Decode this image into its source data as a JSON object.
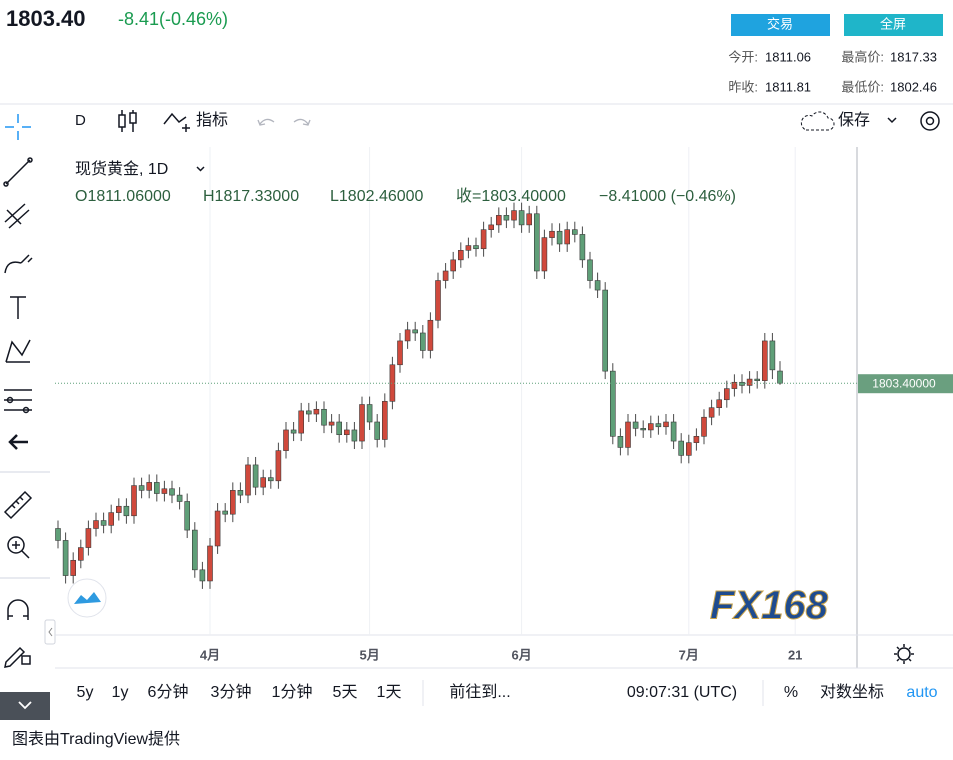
{
  "header": {
    "price": "1803.40",
    "change": "-8.41(-0.46%)",
    "buttons": [
      "交易",
      "全屏"
    ],
    "stats": [
      {
        "label": "今开:",
        "value": "1811.06"
      },
      {
        "label": "最高价:",
        "value": "1817.33"
      },
      {
        "label": "昨收:",
        "value": "1811.81"
      },
      {
        "label": "最低价:",
        "value": "1802.46"
      }
    ]
  },
  "toolbar": {
    "interval": "D",
    "indicators": "指标",
    "save": "保存"
  },
  "legend": {
    "symbol": "现货黄金, 1D",
    "ohlc": [
      "O1811.06000",
      "H1817.33000",
      "L1802.46000",
      "收=1803.40000"
    ],
    "change": "−8.41000 (−0.46%)"
  },
  "watermark": "FX168",
  "bottom_bar": {
    "ranges": [
      "5y",
      "1y",
      "6分钟",
      "3分钟",
      "1分钟",
      "5天",
      "1天"
    ],
    "goto": "前往到...",
    "time": "09:07:31 (UTC)",
    "percent": "%",
    "log": "对数坐标",
    "auto": "auto"
  },
  "footer": "图表由TradingView提供",
  "chart_data": {
    "type": "candlestick",
    "up_color": "#d0493c",
    "down_color": "#5f9f78",
    "ylim": [
      1645,
      1952
    ],
    "last_price": {
      "value": 1803.4,
      "label": "1803.40000"
    },
    "categories": [
      null,
      null,
      null,
      null,
      null,
      null,
      null,
      null,
      null,
      null,
      null,
      null,
      null,
      null,
      null,
      null,
      null,
      null,
      null,
      null,
      "4月",
      null,
      null,
      null,
      null,
      null,
      null,
      null,
      null,
      null,
      null,
      null,
      null,
      null,
      null,
      null,
      null,
      null,
      null,
      null,
      null,
      "5月",
      null,
      null,
      null,
      null,
      null,
      null,
      null,
      null,
      null,
      null,
      null,
      null,
      null,
      null,
      null,
      null,
      null,
      null,
      null,
      "6月",
      null,
      null,
      null,
      null,
      null,
      null,
      null,
      null,
      null,
      null,
      null,
      null,
      null,
      null,
      null,
      null,
      null,
      null,
      null,
      null,
      null,
      "7月",
      null,
      null,
      null,
      null,
      null,
      null,
      null,
      null,
      null,
      null,
      null,
      null,
      null,
      "21"
    ],
    "open": [
      1712,
      1704.5,
      1682.4,
      1692,
      1700,
      1712,
      1717,
      1714,
      1722,
      1726,
      1720,
      1739,
      1736,
      1741,
      1734,
      1737,
      1733,
      1729,
      1711,
      1686,
      1679,
      1701,
      1723,
      1721,
      1736,
      1733,
      1752,
      1738,
      1744,
      1742,
      1761,
      1774,
      1772,
      1786,
      1784,
      1787,
      1777,
      1779,
      1771,
      1774,
      1767,
      1790,
      1779,
      1768,
      1792,
      1815,
      1830,
      1837,
      1835,
      1824,
      1843,
      1868,
      1874,
      1881,
      1887,
      1890,
      1888,
      1900,
      1903,
      1909,
      1906,
      1912,
      1903,
      1910,
      1874,
      1895,
      1899,
      1891,
      1900,
      1897,
      1881,
      1868,
      1862,
      1811,
      1770,
      1763,
      1779,
      1775,
      1774,
      1778,
      1776,
      1779,
      1767,
      1758,
      1766,
      1770,
      1782,
      1788,
      1793,
      1800,
      1804,
      1802,
      1806,
      1805,
      1830,
      1811.06,
      null,
      null
    ],
    "high": [
      1717,
      1709.5,
      1697,
      1705,
      1717,
      1722,
      1722,
      1727,
      1731,
      1731,
      1744,
      1744,
      1746,
      1746,
      1742,
      1742,
      1738,
      1734,
      1716,
      1691,
      1706,
      1728,
      1728,
      1741,
      1741,
      1757,
      1757,
      1749,
      1749,
      1766,
      1779,
      1779,
      1791,
      1791,
      1792,
      1792,
      1784,
      1784,
      1779,
      1779,
      1795,
      1795,
      1784,
      1797,
      1820,
      1835,
      1842,
      1842,
      1840,
      1848,
      1873,
      1879,
      1886,
      1892,
      1895,
      1895,
      1905,
      1908,
      1914,
      1914,
      1917,
      1917,
      1915,
      1915,
      1900,
      1904,
      1904,
      1905,
      1905,
      1902,
      1886,
      1873,
      1867,
      1816,
      1775,
      1784,
      1784,
      1780,
      1783,
      1783,
      1784,
      1784,
      1772,
      1771,
      1775,
      1787,
      1793,
      1798,
      1805,
      1809,
      1809,
      1811,
      1811,
      1835,
      1835,
      1817.33,
      null,
      null
    ],
    "low": [
      1699.5,
      1677.4,
      1677.4,
      1687,
      1695,
      1707,
      1709,
      1709,
      1717,
      1715,
      1715,
      1731,
      1731,
      1729,
      1729,
      1728,
      1724,
      1706,
      1681,
      1674,
      1674,
      1696,
      1716,
      1716,
      1728,
      1728,
      1733,
      1733,
      1737,
      1737,
      1756,
      1767,
      1767,
      1779,
      1779,
      1772,
      1772,
      1766,
      1766,
      1762,
      1762,
      1774,
      1763,
      1763,
      1787,
      1810,
      1825,
      1830,
      1819,
      1819,
      1838,
      1863,
      1869,
      1876,
      1882,
      1883,
      1883,
      1895,
      1898,
      1901,
      1901,
      1898,
      1898,
      1869,
      1869,
      1890,
      1886,
      1886,
      1892,
      1876,
      1863,
      1857,
      1806,
      1765,
      1758,
      1758,
      1770,
      1769,
      1769,
      1771,
      1771,
      1762,
      1753,
      1753,
      1761,
      1765,
      1777,
      1783,
      1788,
      1795,
      1797,
      1797,
      1800,
      1800,
      1806,
      1802.46,
      null,
      null
    ],
    "close": [
      1704.5,
      1682.4,
      1692,
      1700,
      1712,
      1717,
      1714,
      1722,
      1726,
      1720,
      1739,
      1736,
      1741,
      1734,
      1737,
      1733,
      1729,
      1711,
      1686,
      1679,
      1701,
      1723,
      1721,
      1736,
      1733,
      1752,
      1738,
      1744,
      1742,
      1761,
      1774,
      1772,
      1786,
      1784,
      1787,
      1777,
      1779,
      1771,
      1774,
      1767,
      1790,
      1779,
      1768,
      1792,
      1815,
      1830,
      1837,
      1835,
      1824,
      1843,
      1868,
      1874,
      1881,
      1887,
      1890,
      1888,
      1900,
      1903,
      1909,
      1906,
      1912,
      1903,
      1910,
      1874,
      1895,
      1899,
      1891,
      1900,
      1897,
      1881,
      1868,
      1862,
      1811,
      1770,
      1763,
      1779,
      1775,
      1774,
      1778,
      1776,
      1779,
      1767,
      1758,
      1766,
      1770,
      1782,
      1788,
      1793,
      1800,
      1804,
      1802,
      1806,
      1805,
      1830,
      1811.81,
      1803.4,
      null,
      null
    ]
  }
}
